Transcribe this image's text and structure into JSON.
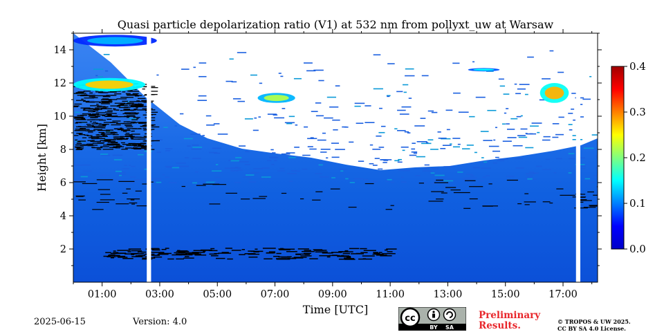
{
  "chart_data": {
    "type": "heatmap",
    "title": "Quasi particle depolarization ratio (V1) at 532 nm from pollyxt_uw at Warsaw",
    "xlabel": "Time [UTC]",
    "ylabel": "Height [km]",
    "xlim": [
      0,
      18.2
    ],
    "ylim": [
      0,
      15
    ],
    "x_ticks": [
      "01:00",
      "03:00",
      "05:00",
      "07:00",
      "09:00",
      "11:00",
      "13:00",
      "15:00",
      "17:00"
    ],
    "x_tick_values": [
      1,
      3,
      5,
      7,
      9,
      11,
      13,
      15,
      17
    ],
    "y_ticks": [
      "2",
      "4",
      "6",
      "8",
      "10",
      "12",
      "14"
    ],
    "y_tick_values": [
      2,
      4,
      6,
      8,
      10,
      12,
      14
    ],
    "colorbar": {
      "min": 0.0,
      "max": 0.4,
      "ticks": [
        "0.0",
        "0.1",
        "0.2",
        "0.3",
        "0.4"
      ],
      "tick_values": [
        0.0,
        0.1,
        0.2,
        0.3,
        0.4
      ],
      "colormap": "jet"
    },
    "data_gaps_hours": [
      [
        2.55,
        2.7
      ],
      [
        17.45,
        17.6
      ]
    ],
    "features": [
      {
        "x0": 0.0,
        "x1": 2.5,
        "y0": 11.5,
        "y1": 12.3,
        "value": 0.27
      },
      {
        "x0": 0.0,
        "x1": 2.9,
        "y0": 14.2,
        "y1": 14.9,
        "value": 0.12
      },
      {
        "x0": 6.4,
        "x1": 7.7,
        "y0": 10.8,
        "y1": 11.4,
        "value": 0.22
      },
      {
        "x0": 13.7,
        "x1": 14.8,
        "y0": 12.7,
        "y1": 12.9,
        "value": 0.15
      },
      {
        "x0": 16.2,
        "x1": 17.2,
        "y0": 10.8,
        "y1": 12.0,
        "value": 0.28
      }
    ]
  },
  "footer": {
    "date": "2025-06-15",
    "version": "Version: 4.0",
    "preliminary_line1": "Preliminary",
    "preliminary_line2": "Results.",
    "license_line1": "© TROPOS & UW 2025.",
    "license_line2": "CC BY SA 4.0 License.",
    "cc_badge": {
      "text1": "BY",
      "text2": "SA"
    }
  }
}
